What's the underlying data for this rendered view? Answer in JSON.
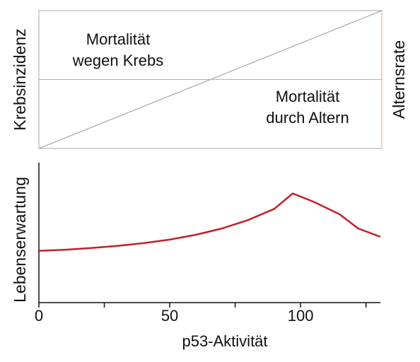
{
  "chart_data": [
    {
      "type": "schema",
      "ylabel": "Krebsinzidenz",
      "y2label": "Alternsrate",
      "xlim": [
        0,
        1
      ],
      "ylim": [
        0,
        1
      ],
      "y2lim": [
        0,
        1
      ],
      "series": [
        {
          "color": "#999999",
          "x": [
            0,
            1
          ],
          "values": [
            0,
            1
          ]
        },
        {
          "color": "#f0a070",
          "x": [
            0,
            1
          ],
          "values": [
            0.5,
            0.5
          ],
          "axis": "y2"
        }
      ],
      "annotations": [
        {
          "lines": [
            "Mortalität",
            "wegen Krebs"
          ]
        },
        {
          "lines": [
            "Mortalität",
            "durch Altern"
          ]
        }
      ]
    },
    {
      "type": "line",
      "ylabel": "Lebenserwartung",
      "xlabel": "p53-Aktivität",
      "xlim": [
        0,
        130.5
      ],
      "ylim": [
        0,
        100
      ],
      "xticks": [
        0,
        50,
        100
      ],
      "xminorticks": [
        25,
        75,
        125
      ],
      "series": [
        {
          "color": "#c0202a",
          "x": [
            0,
            10,
            20,
            30,
            40,
            50,
            60,
            70,
            80,
            90,
            97,
            105,
            115,
            122,
            130.5
          ],
          "values": [
            37,
            37.8,
            39,
            40.5,
            42.5,
            45,
            48.5,
            53,
            59,
            67,
            78,
            72,
            63,
            53,
            47
          ]
        }
      ]
    }
  ]
}
